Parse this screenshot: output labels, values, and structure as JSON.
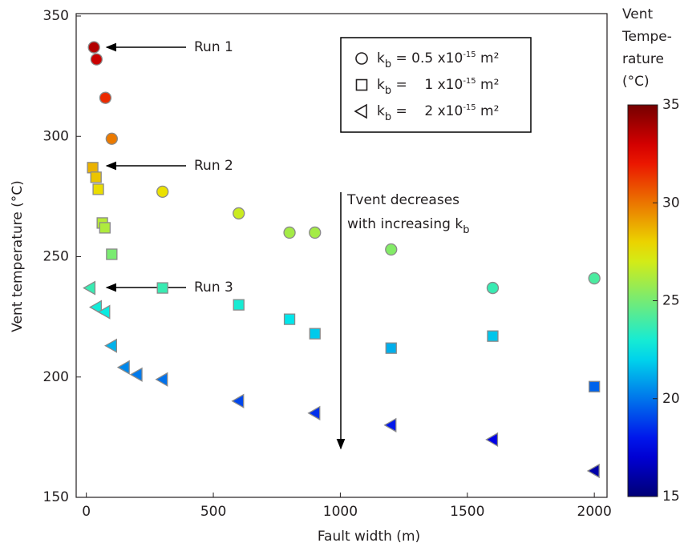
{
  "chart_data": {
    "type": "scatter",
    "xlabel": "Fault width (m)",
    "ylabel": "Vent temperature (°C)",
    "xlim": [
      -40,
      2050
    ],
    "ylim": [
      150,
      351
    ],
    "xticks": [
      0,
      500,
      1000,
      1500,
      2000
    ],
    "yticks": [
      150,
      200,
      250,
      300,
      350
    ],
    "colormap": "jet",
    "clim": [
      150,
      350
    ],
    "cticks": [
      150,
      200,
      250,
      300,
      350
    ],
    "colorbar_label": [
      "Vent",
      "Tempe-",
      "rature",
      "(°C)"
    ],
    "legend": "top-right",
    "series": [
      {
        "name": [
          "k",
          "b",
          " = 0.5 x10",
          "-15",
          " m²"
        ],
        "marker": "circle",
        "x": [
          30,
          40,
          75,
          100,
          300,
          600,
          800,
          900,
          1200,
          1600,
          2000
        ],
        "values": [
          337,
          332,
          316,
          299,
          277,
          268,
          260,
          260,
          253,
          237,
          241
        ]
      },
      {
        "name": [
          "k",
          "b",
          " =    1 x10",
          "-15",
          " m²"
        ],
        "marker": "square",
        "x": [
          25,
          38,
          47,
          63,
          73,
          100,
          300,
          600,
          800,
          900,
          1200,
          1600,
          2000
        ],
        "values": [
          287,
          283,
          278,
          264,
          262,
          251,
          237,
          230,
          224,
          218,
          212,
          217,
          196
        ]
      },
      {
        "name": [
          "k",
          "b",
          " =    2 x10",
          "-15",
          " m²"
        ],
        "marker": "triangle-left",
        "x": [
          15,
          40,
          73,
          100,
          150,
          200,
          300,
          600,
          900,
          1200,
          1600,
          2000
        ],
        "values": [
          237,
          229,
          227,
          213,
          204,
          201,
          199,
          190,
          185,
          180,
          174,
          161
        ]
      }
    ],
    "annotations": [
      "Run 1",
      "Run 2",
      "Run 3"
    ],
    "trend_note": {
      "lines": [
        "Tvent decreases",
        "with increasing k"
      ],
      "subscript": "b"
    }
  }
}
